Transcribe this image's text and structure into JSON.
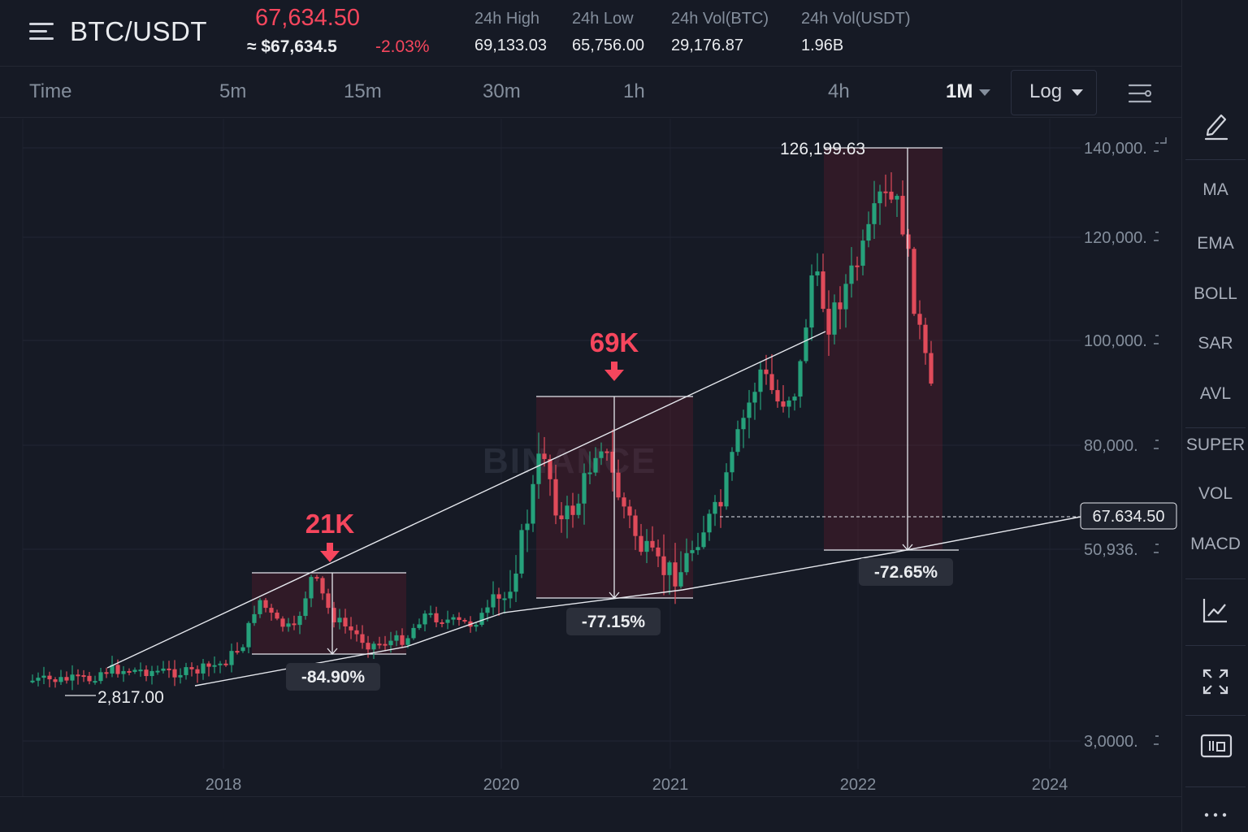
{
  "header": {
    "pair": "BTC/USDT",
    "last_price": "67,634.50",
    "converted": "≈ $67,634.5",
    "change": "-2.03%",
    "stats": [
      {
        "label": "24h High",
        "value": "69,133.03"
      },
      {
        "label": "24h Low",
        "value": "65,756.00"
      },
      {
        "label": "24h Vol(BTC)",
        "value": "29,176.87"
      },
      {
        "label": "24h Vol(USDT)",
        "value": "1.96B"
      }
    ]
  },
  "timeframes": {
    "time_label": "Time",
    "items": [
      "5m",
      "15m",
      "30m",
      "1h",
      "4h"
    ],
    "active": "1M",
    "scale": "Log"
  },
  "sidebar": {
    "indicators": [
      "MA",
      "EMA",
      "BOLL",
      "SAR",
      "AVL",
      "SUPER",
      "VOL",
      "MACD"
    ],
    "icons": [
      "draw-tool-icon",
      "indicator-chart-icon",
      "fullscreen-icon",
      "calendar-icon",
      "more-icon"
    ]
  },
  "colors": {
    "up": "#26a17b",
    "down": "#e04b5a",
    "accent_red": "#f6465d",
    "background": "#161a25"
  },
  "chart_data": {
    "type": "candlestick",
    "watermark": "BINANCE",
    "y_ticks": [
      "140,000",
      "120,000",
      "100,000",
      "80,000",
      "50,936",
      "3,0000"
    ],
    "x_ticks": [
      "2018",
      "2020",
      "2021",
      "2022",
      "2024"
    ],
    "current_price_label": "67.634.50",
    "annotations": {
      "peak_labels": [
        "21K",
        "69K"
      ],
      "drawdowns": [
        "-84.90%",
        "-77.15%",
        "-72.65%"
      ],
      "low_label": "2,817.00",
      "high_label": "126,199.63"
    }
  }
}
